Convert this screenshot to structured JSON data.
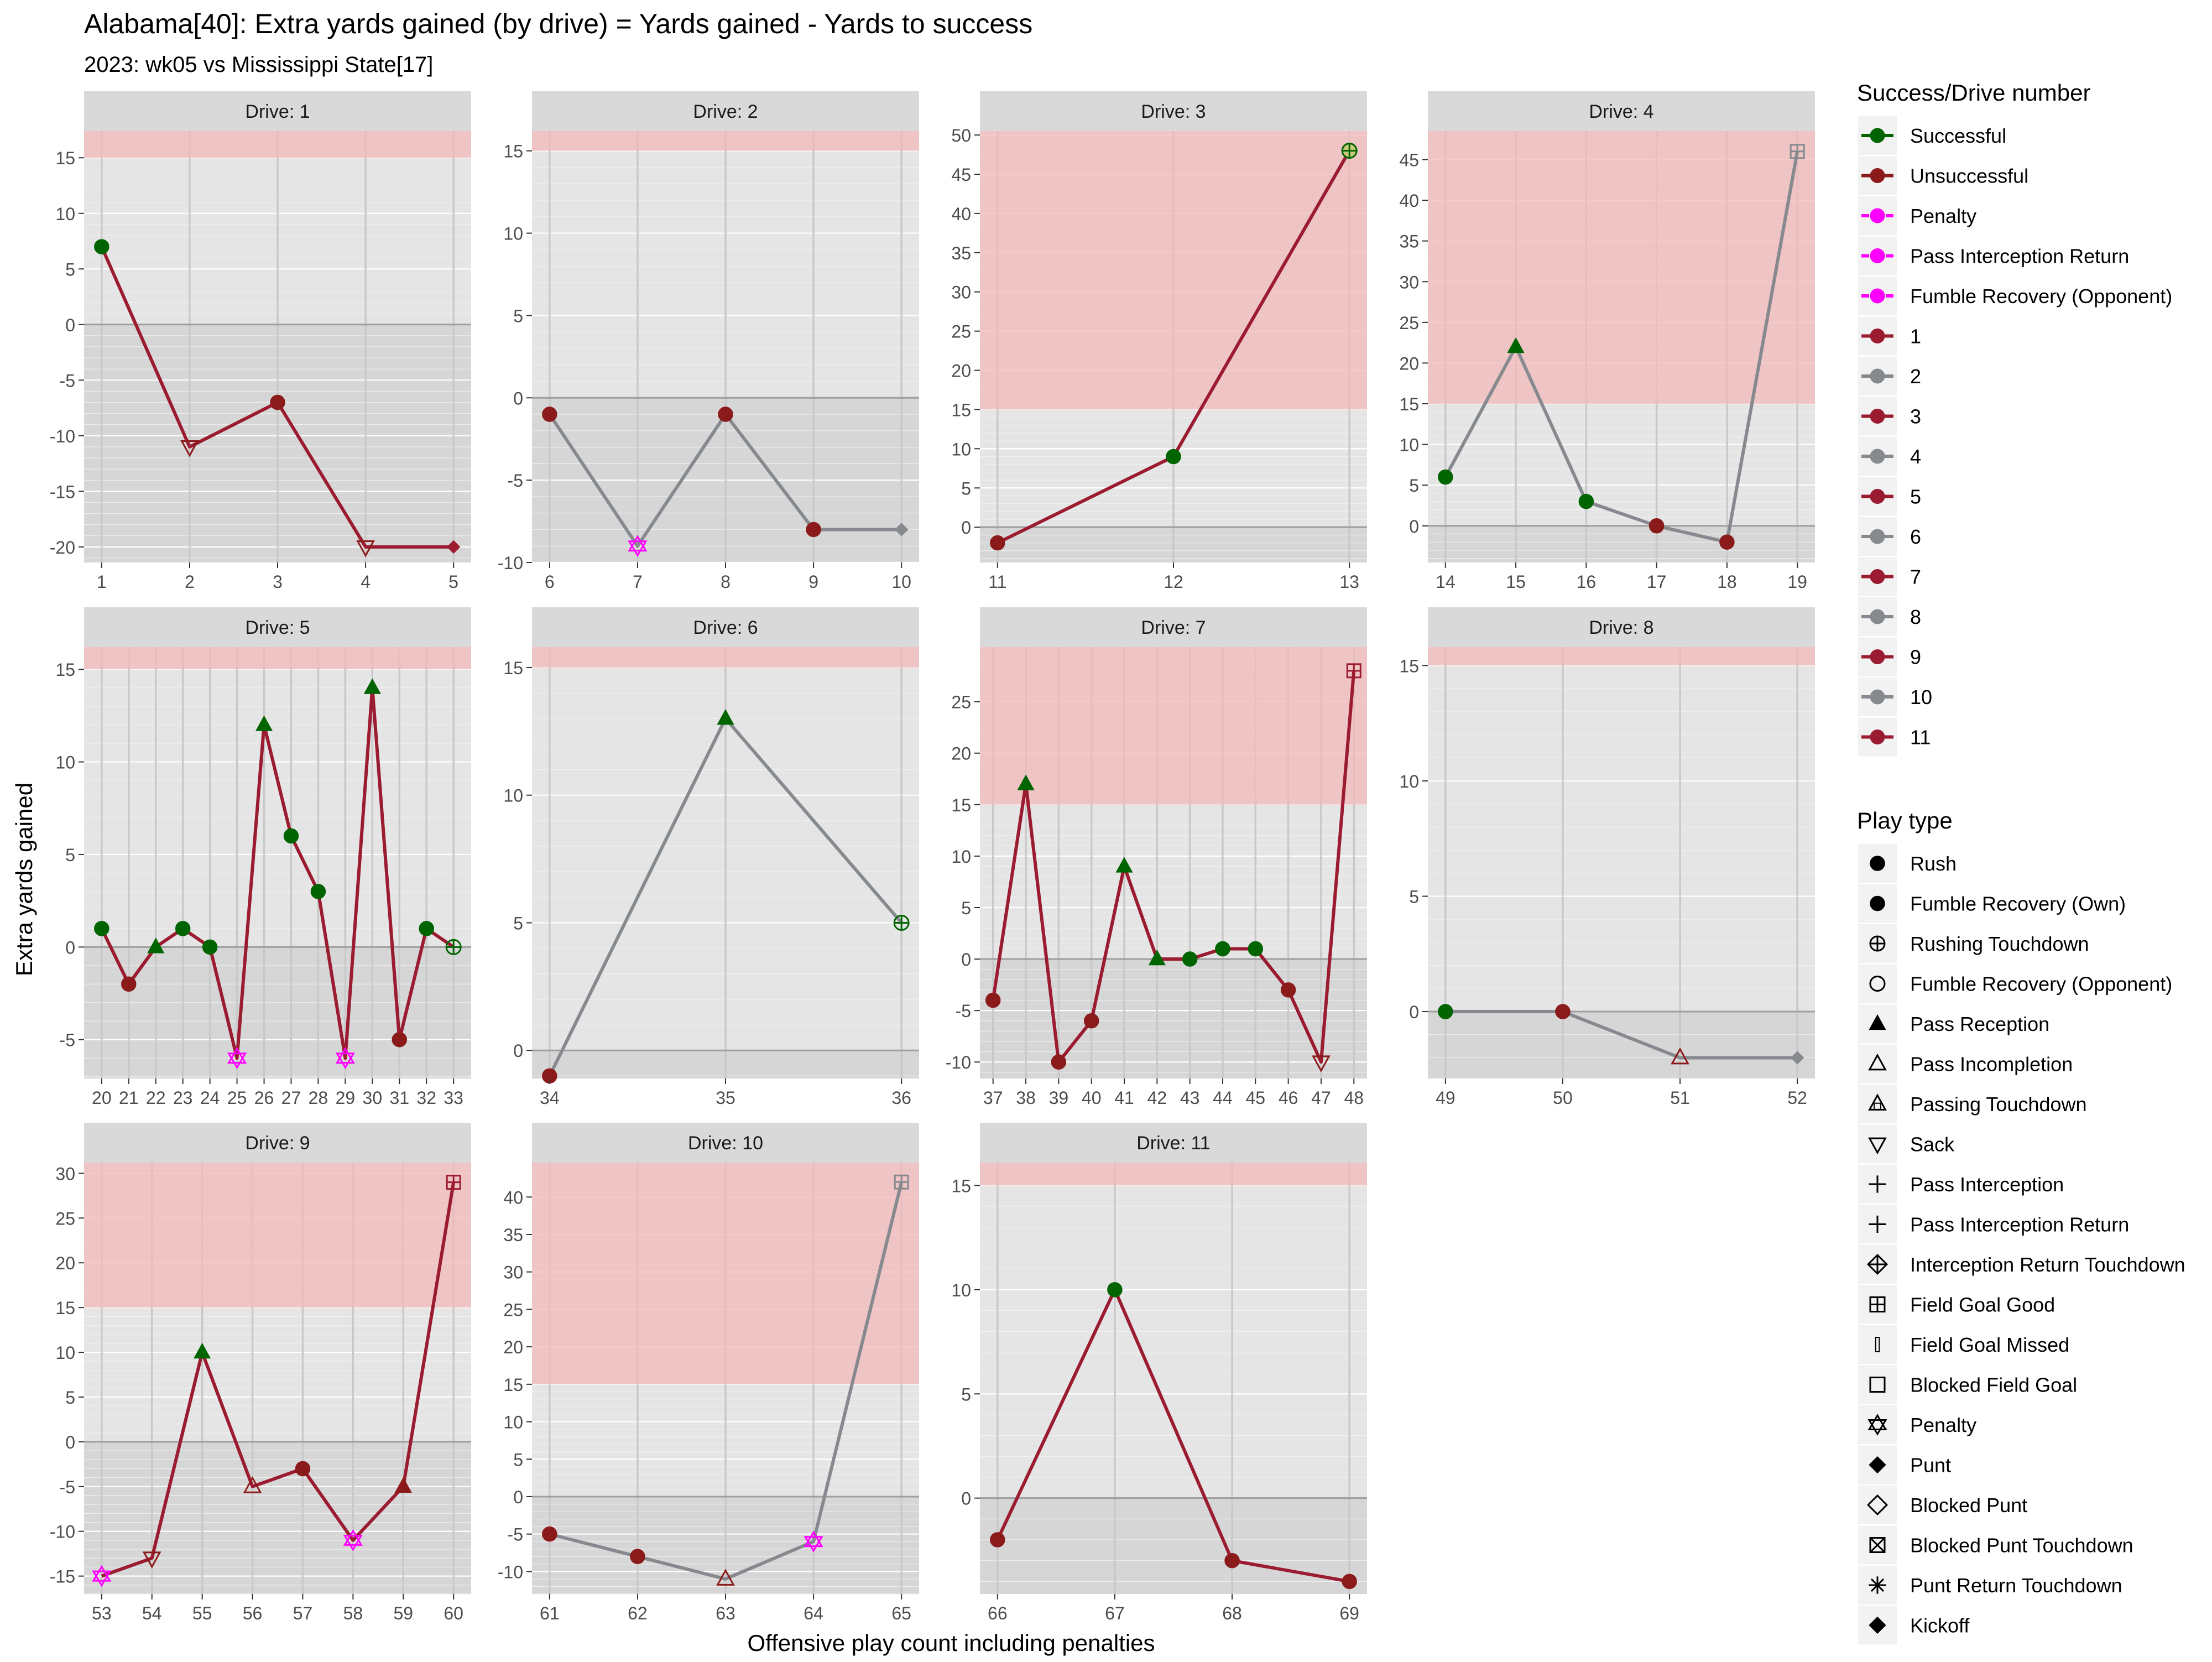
{
  "title": "Alabama[40]: Extra yards gained (by drive) = Yards gained - Yards to success",
  "subtitle": "2023: wk05 vs Mississippi State[17]",
  "colors": {
    "successful": "#006400",
    "unsuccessful": "#8B1A1A",
    "penalty": "#FF00FF",
    "drive_odd": "#9B1B30",
    "drive_even": "#868A8E",
    "shade_above": "#F2B8B8",
    "panel_bg": "#E5E5E5",
    "panel_bg_below": "#D6D6D6",
    "strip_bg": "#D9D9D9"
  },
  "chart_data": {
    "type": "line",
    "xlabel": "Offensive play count including penalties",
    "ylabel": "Extra yards gained",
    "success_threshold": 15,
    "legend_position": "right",
    "legend_success": {
      "title": "Success/Drive number",
      "items": [
        {
          "label": "Successful",
          "color": "#006400",
          "dashed": false
        },
        {
          "label": "Unsuccessful",
          "color": "#8B1A1A",
          "dashed": false
        },
        {
          "label": "Penalty",
          "color": "#FF00FF",
          "dashed": true
        },
        {
          "label": "Pass Interception Return",
          "color": "#FF00FF",
          "dashed": true
        },
        {
          "label": "Fumble Recovery (Opponent)",
          "color": "#FF00FF",
          "dashed": true
        },
        {
          "label": "1",
          "color": "#9B1B30",
          "dashed": false
        },
        {
          "label": "2",
          "color": "#868A8E",
          "dashed": false
        },
        {
          "label": "3",
          "color": "#9B1B30",
          "dashed": false
        },
        {
          "label": "4",
          "color": "#868A8E",
          "dashed": false
        },
        {
          "label": "5",
          "color": "#9B1B30",
          "dashed": false
        },
        {
          "label": "6",
          "color": "#868A8E",
          "dashed": false
        },
        {
          "label": "7",
          "color": "#9B1B30",
          "dashed": false
        },
        {
          "label": "8",
          "color": "#868A8E",
          "dashed": false
        },
        {
          "label": "9",
          "color": "#9B1B30",
          "dashed": false
        },
        {
          "label": "10",
          "color": "#868A8E",
          "dashed": false
        },
        {
          "label": "11",
          "color": "#9B1B30",
          "dashed": false
        }
      ]
    },
    "legend_playtype": {
      "title": "Play type",
      "items": [
        {
          "label": "Rush",
          "shape": "circle-filled"
        },
        {
          "label": "Fumble Recovery (Own)",
          "shape": "circle-filled"
        },
        {
          "label": "Rushing Touchdown",
          "shape": "circle-plus"
        },
        {
          "label": "Fumble Recovery (Opponent)",
          "shape": "circle-open"
        },
        {
          "label": "Pass Reception",
          "shape": "triangle-filled"
        },
        {
          "label": "Pass Incompletion",
          "shape": "triangle-open"
        },
        {
          "label": "Passing Touchdown",
          "shape": "triangle-square"
        },
        {
          "label": "Sack",
          "shape": "triangle-down-open"
        },
        {
          "label": "Pass Interception",
          "shape": "plus"
        },
        {
          "label": "Pass Interception Return",
          "shape": "plus"
        },
        {
          "label": "Interception Return Touchdown",
          "shape": "diamond-plus"
        },
        {
          "label": "Field Goal Good",
          "shape": "square-plus"
        },
        {
          "label": "Field Goal Missed",
          "shape": "thin-rect"
        },
        {
          "label": "Blocked Field Goal",
          "shape": "square-open"
        },
        {
          "label": "Penalty",
          "shape": "star-of-david"
        },
        {
          "label": "Punt",
          "shape": "diamond-filled"
        },
        {
          "label": "Blocked Punt",
          "shape": "diamond-open"
        },
        {
          "label": "Blocked Punt Touchdown",
          "shape": "square-x"
        },
        {
          "label": "Punt Return Touchdown",
          "shape": "asterisk"
        },
        {
          "label": "Kickoff",
          "shape": "diamond-filled"
        }
      ]
    },
    "panels": [
      {
        "strip": "Drive: 1",
        "ylim": [
          -21.4,
          17.4
        ],
        "yticks": [
          -20,
          -15,
          -10,
          -5,
          0,
          5,
          10,
          15
        ],
        "xlim": [
          0.8,
          5.2
        ],
        "xticks": [
          1,
          2,
          3,
          4,
          5
        ],
        "points": [
          {
            "x": 1,
            "y": 7,
            "play": "Rush",
            "result": "Successful"
          },
          {
            "x": 2,
            "y": -11,
            "play": "Sack",
            "result": "Unsuccessful"
          },
          {
            "x": 3,
            "y": -7,
            "play": "Rush",
            "result": "Unsuccessful"
          },
          {
            "x": 4,
            "y": -20,
            "play": "Sack",
            "result": "Unsuccessful"
          },
          {
            "x": 5,
            "y": -20,
            "play": "Punt",
            "result": "Drive"
          }
        ]
      },
      {
        "strip": "Drive: 2",
        "ylim": [
          -10,
          16.2
        ],
        "yticks": [
          -10,
          -5,
          0,
          5,
          10,
          15
        ],
        "xlim": [
          5.8,
          10.2
        ],
        "xticks": [
          6,
          7,
          8,
          9,
          10
        ],
        "points": [
          {
            "x": 6,
            "y": -1,
            "play": "Rush",
            "result": "Unsuccessful"
          },
          {
            "x": 7,
            "y": -9,
            "play": "Penalty",
            "result": "Penalty"
          },
          {
            "x": 8,
            "y": -1,
            "play": "Rush",
            "result": "Unsuccessful"
          },
          {
            "x": 9,
            "y": -8,
            "play": "Rush",
            "result": "Unsuccessful"
          },
          {
            "x": 10,
            "y": -8,
            "play": "Punt",
            "result": "Drive"
          }
        ]
      },
      {
        "strip": "Drive: 3",
        "ylim": [
          -4.5,
          50.5
        ],
        "yticks": [
          0,
          5,
          10,
          15,
          20,
          25,
          30,
          35,
          40,
          45,
          50
        ],
        "xlim": [
          10.9,
          13.1
        ],
        "xticks": [
          11,
          12,
          13
        ],
        "points": [
          {
            "x": 11,
            "y": -2,
            "play": "Rush",
            "result": "Unsuccessful"
          },
          {
            "x": 12,
            "y": 9,
            "play": "Rush",
            "result": "Successful"
          },
          {
            "x": 13,
            "y": 48,
            "play": "Rushing Touchdown",
            "result": "Successful"
          }
        ]
      },
      {
        "strip": "Drive: 4",
        "ylim": [
          -4.5,
          48.5
        ],
        "yticks": [
          0,
          5,
          10,
          15,
          20,
          25,
          30,
          35,
          40,
          45
        ],
        "xlim": [
          13.75,
          19.25
        ],
        "xticks": [
          14,
          15,
          16,
          17,
          18,
          19
        ],
        "points": [
          {
            "x": 14,
            "y": 6,
            "play": "Rush",
            "result": "Successful"
          },
          {
            "x": 15,
            "y": 22,
            "play": "Pass Reception",
            "result": "Successful"
          },
          {
            "x": 16,
            "y": 3,
            "play": "Rush",
            "result": "Successful"
          },
          {
            "x": 17,
            "y": 0,
            "play": "Rush",
            "result": "Unsuccessful"
          },
          {
            "x": 18,
            "y": -2,
            "play": "Rush",
            "result": "Unsuccessful"
          },
          {
            "x": 19,
            "y": 46,
            "play": "Field Goal Good",
            "result": "Drive"
          }
        ]
      },
      {
        "strip": "Drive: 5",
        "ylim": [
          -7.1,
          16.2
        ],
        "yticks": [
          -5,
          0,
          5,
          10,
          15
        ],
        "xlim": [
          19.35,
          33.65
        ],
        "xticks": [
          20,
          21,
          22,
          23,
          24,
          25,
          26,
          27,
          28,
          29,
          30,
          31,
          32,
          33
        ],
        "points": [
          {
            "x": 20,
            "y": 1,
            "play": "Rush",
            "result": "Successful"
          },
          {
            "x": 21,
            "y": -2,
            "play": "Rush",
            "result": "Unsuccessful"
          },
          {
            "x": 22,
            "y": 0,
            "play": "Pass Reception",
            "result": "Successful"
          },
          {
            "x": 23,
            "y": 1,
            "play": "Rush",
            "result": "Successful"
          },
          {
            "x": 24,
            "y": 0,
            "play": "Rush",
            "result": "Successful"
          },
          {
            "x": 25,
            "y": -6,
            "play": "Penalty",
            "result": "Penalty"
          },
          {
            "x": 26,
            "y": 12,
            "play": "Pass Reception",
            "result": "Successful"
          },
          {
            "x": 27,
            "y": 6,
            "play": "Rush",
            "result": "Successful"
          },
          {
            "x": 28,
            "y": 3,
            "play": "Rush",
            "result": "Successful"
          },
          {
            "x": 29,
            "y": -6,
            "play": "Penalty",
            "result": "Penalty"
          },
          {
            "x": 30,
            "y": 14,
            "play": "Pass Reception",
            "result": "Successful"
          },
          {
            "x": 31,
            "y": -5,
            "play": "Rush",
            "result": "Unsuccessful"
          },
          {
            "x": 32,
            "y": 1,
            "play": "Rush",
            "result": "Successful"
          },
          {
            "x": 33,
            "y": 0,
            "play": "Rushing Touchdown",
            "result": "Successful"
          }
        ]
      },
      {
        "strip": "Drive: 6",
        "ylim": [
          -1.1,
          15.8
        ],
        "yticks": [
          0,
          5,
          10,
          15
        ],
        "xlim": [
          33.9,
          36.1
        ],
        "xticks": [
          34,
          35,
          36
        ],
        "points": [
          {
            "x": 34,
            "y": -1,
            "play": "Rush",
            "result": "Unsuccessful"
          },
          {
            "x": 35,
            "y": 13,
            "play": "Pass Reception",
            "result": "Successful"
          },
          {
            "x": 36,
            "y": 5,
            "play": "Rushing Touchdown",
            "result": "Successful"
          }
        ]
      },
      {
        "strip": "Drive: 7",
        "ylim": [
          -11.6,
          30.3
        ],
        "yticks": [
          -10,
          -5,
          0,
          5,
          10,
          15,
          20,
          25
        ],
        "xlim": [
          36.6,
          48.4
        ],
        "xticks": [
          37,
          38,
          39,
          40,
          41,
          42,
          43,
          44,
          45,
          46,
          47,
          48
        ],
        "points": [
          {
            "x": 37,
            "y": -4,
            "play": "Rush",
            "result": "Unsuccessful"
          },
          {
            "x": 38,
            "y": 17,
            "play": "Pass Reception",
            "result": "Successful"
          },
          {
            "x": 39,
            "y": -10,
            "play": "Rush",
            "result": "Unsuccessful"
          },
          {
            "x": 40,
            "y": -6,
            "play": "Rush",
            "result": "Unsuccessful"
          },
          {
            "x": 41,
            "y": 9,
            "play": "Pass Reception",
            "result": "Successful"
          },
          {
            "x": 42,
            "y": 0,
            "play": "Pass Reception",
            "result": "Successful"
          },
          {
            "x": 43,
            "y": 0,
            "play": "Rush",
            "result": "Successful"
          },
          {
            "x": 44,
            "y": 1,
            "play": "Rush",
            "result": "Successful"
          },
          {
            "x": 45,
            "y": 1,
            "play": "Rush",
            "result": "Successful"
          },
          {
            "x": 46,
            "y": -3,
            "play": "Rush",
            "result": "Unsuccessful"
          },
          {
            "x": 47,
            "y": -10,
            "play": "Sack",
            "result": "Unsuccessful"
          },
          {
            "x": 48,
            "y": 28,
            "play": "Field Goal Good",
            "result": "Drive"
          }
        ]
      },
      {
        "strip": "Drive: 8",
        "ylim": [
          -2.9,
          15.8
        ],
        "yticks": [
          0,
          5,
          10,
          15
        ],
        "xlim": [
          48.85,
          52.15
        ],
        "xticks": [
          49,
          50,
          51,
          52
        ],
        "points": [
          {
            "x": 49,
            "y": 0,
            "play": "Rush",
            "result": "Successful"
          },
          {
            "x": 50,
            "y": 0,
            "play": "Rush",
            "result": "Unsuccessful"
          },
          {
            "x": 51,
            "y": -2,
            "play": "Pass Incompletion",
            "result": "Unsuccessful"
          },
          {
            "x": 52,
            "y": -2,
            "play": "Punt",
            "result": "Drive"
          }
        ]
      },
      {
        "strip": "Drive: 9",
        "ylim": [
          -17.0,
          31.2
        ],
        "yticks": [
          -15,
          -10,
          -5,
          0,
          5,
          10,
          15,
          20,
          25,
          30
        ],
        "xlim": [
          52.65,
          60.35
        ],
        "xticks": [
          53,
          54,
          55,
          56,
          57,
          58,
          59,
          60
        ],
        "points": [
          {
            "x": 53,
            "y": -15,
            "play": "Penalty",
            "result": "Penalty"
          },
          {
            "x": 54,
            "y": -13,
            "play": "Sack",
            "result": "Unsuccessful"
          },
          {
            "x": 55,
            "y": 10,
            "play": "Pass Reception",
            "result": "Successful"
          },
          {
            "x": 56,
            "y": -5,
            "play": "Pass Incompletion",
            "result": "Unsuccessful"
          },
          {
            "x": 57,
            "y": -3,
            "play": "Rush",
            "result": "Unsuccessful"
          },
          {
            "x": 58,
            "y": -11,
            "play": "Penalty",
            "result": "Penalty"
          },
          {
            "x": 59,
            "y": -5,
            "play": "Pass Reception",
            "result": "Unsuccessful"
          },
          {
            "x": 60,
            "y": 29,
            "play": "Field Goal Good",
            "result": "Drive"
          }
        ]
      },
      {
        "strip": "Drive: 10",
        "ylim": [
          -13.0,
          44.6
        ],
        "yticks": [
          -10,
          -5,
          0,
          5,
          10,
          15,
          20,
          25,
          30,
          35,
          40
        ],
        "xlim": [
          60.8,
          65.2
        ],
        "xticks": [
          61,
          62,
          63,
          64,
          65
        ],
        "points": [
          {
            "x": 61,
            "y": -5,
            "play": "Rush",
            "result": "Unsuccessful"
          },
          {
            "x": 62,
            "y": -8,
            "play": "Rush",
            "result": "Unsuccessful"
          },
          {
            "x": 63,
            "y": -11,
            "play": "Pass Incompletion",
            "result": "Unsuccessful"
          },
          {
            "x": 64,
            "y": -6,
            "play": "Penalty",
            "result": "Penalty"
          },
          {
            "x": 65,
            "y": 42,
            "play": "Field Goal Good",
            "result": "Drive"
          }
        ]
      },
      {
        "strip": "Drive: 11",
        "ylim": [
          -4.6,
          16.1
        ],
        "yticks": [
          0,
          5,
          10,
          15
        ],
        "xlim": [
          65.85,
          69.15
        ],
        "xticks": [
          66,
          67,
          68,
          69
        ],
        "points": [
          {
            "x": 66,
            "y": -2,
            "play": "Rush",
            "result": "Unsuccessful"
          },
          {
            "x": 67,
            "y": 10,
            "play": "Rush",
            "result": "Successful"
          },
          {
            "x": 68,
            "y": -3,
            "play": "Rush",
            "result": "Unsuccessful"
          },
          {
            "x": 69,
            "y": -4,
            "play": "Rush",
            "result": "Unsuccessful"
          }
        ]
      }
    ]
  }
}
